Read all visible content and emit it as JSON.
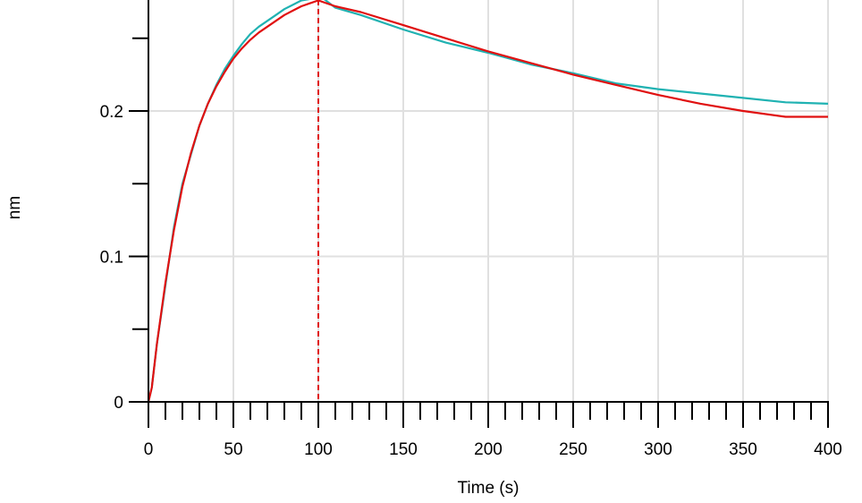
{
  "chart_data": {
    "type": "line",
    "title": "",
    "xlabel": "Time (s)",
    "ylabel": "nm",
    "xlim": [
      0,
      400
    ],
    "ylim": [
      0,
      0.28
    ],
    "x_ticks": [
      0,
      50,
      100,
      150,
      200,
      250,
      300,
      350,
      400
    ],
    "x_tick_labels": [
      "0",
      "50",
      "100",
      "150",
      "200",
      "250",
      "300",
      "350",
      "400"
    ],
    "y_ticks": [
      0,
      0.1,
      0.2
    ],
    "y_tick_labels": [
      "0",
      "0.1",
      "0.2"
    ],
    "grid": true,
    "legend": "none",
    "vertical_markers": [
      0,
      100
    ],
    "series": [
      {
        "role": "measured",
        "color": "#20b2b2",
        "x": [
          0,
          2,
          5,
          10,
          15,
          20,
          25,
          30,
          35,
          40,
          45,
          50,
          55,
          60,
          65,
          70,
          75,
          80,
          85,
          90,
          95,
          100,
          110,
          125,
          150,
          175,
          200,
          225,
          250,
          275,
          300,
          325,
          350,
          375,
          400
        ],
        "y": [
          0.0,
          0.01,
          0.04,
          0.08,
          0.12,
          0.15,
          0.17,
          0.19,
          0.205,
          0.218,
          0.229,
          0.238,
          0.246,
          0.253,
          0.258,
          0.262,
          0.266,
          0.27,
          0.273,
          0.276,
          0.277,
          0.28,
          0.271,
          0.266,
          0.256,
          0.247,
          0.24,
          0.232,
          0.226,
          0.219,
          0.215,
          0.212,
          0.209,
          0.206,
          0.205
        ]
      },
      {
        "role": "fit",
        "color": "#e01010",
        "x": [
          0,
          2,
          5,
          10,
          15,
          20,
          25,
          30,
          35,
          40,
          45,
          50,
          55,
          60,
          65,
          70,
          75,
          80,
          85,
          90,
          95,
          100,
          110,
          125,
          150,
          175,
          200,
          225,
          250,
          275,
          300,
          325,
          350,
          375,
          400
        ],
        "y": [
          0.0,
          0.01,
          0.04,
          0.082,
          0.118,
          0.148,
          0.171,
          0.19,
          0.205,
          0.217,
          0.227,
          0.236,
          0.243,
          0.249,
          0.254,
          0.258,
          0.262,
          0.266,
          0.269,
          0.272,
          0.274,
          0.276,
          0.272,
          0.268,
          0.259,
          0.25,
          0.241,
          0.233,
          0.225,
          0.218,
          0.211,
          0.205,
          0.2,
          0.196,
          0.196
        ]
      }
    ]
  },
  "colors": {
    "axis": "#000000",
    "grid": "#e0e0e0",
    "marker": "#e01010"
  }
}
